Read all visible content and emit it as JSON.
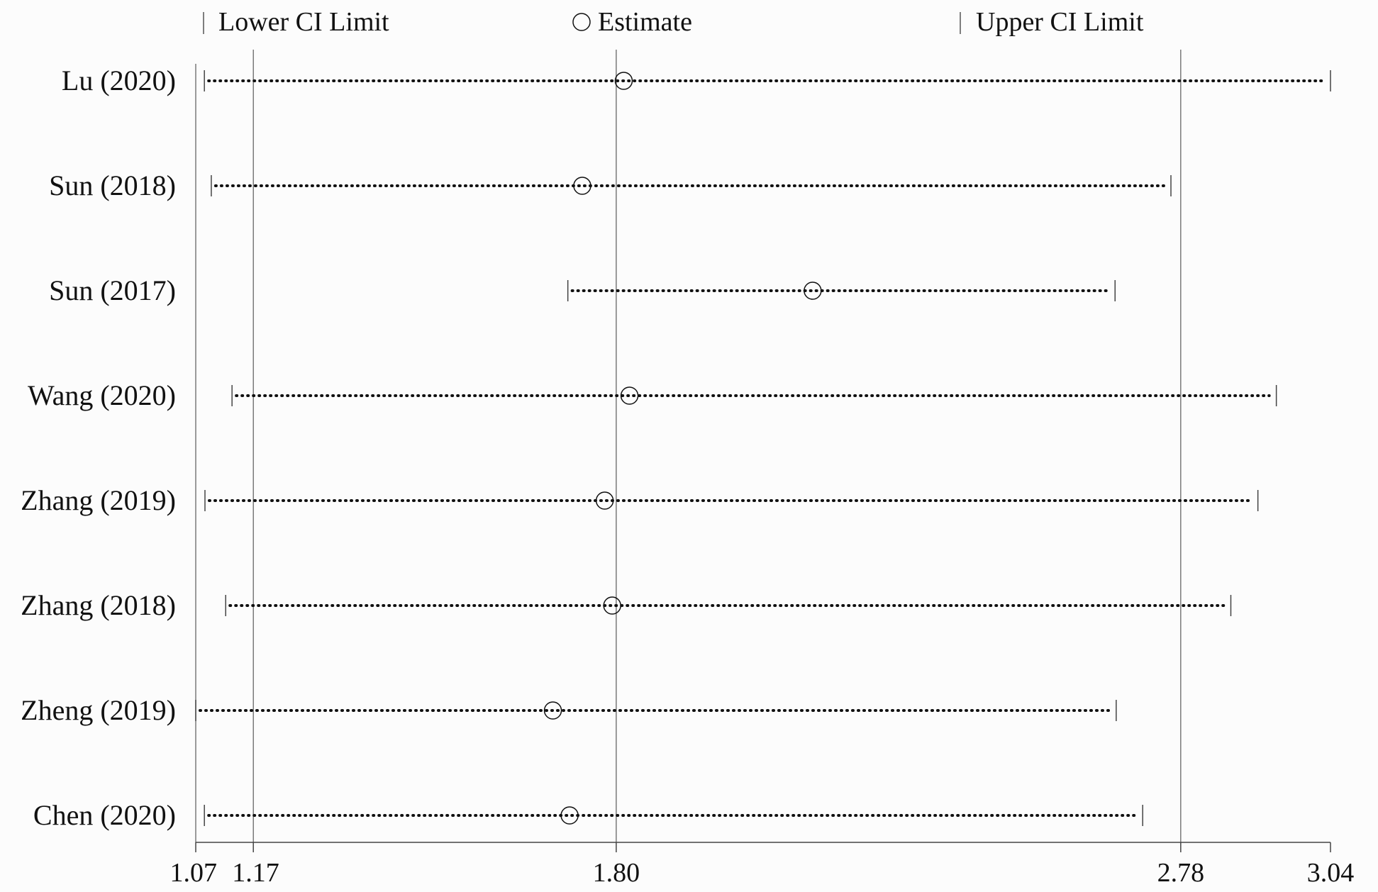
{
  "chart_data": {
    "type": "forest",
    "legend": {
      "position": "top",
      "items": [
        {
          "symbol": "tick",
          "label": "Lower CI Limit"
        },
        {
          "symbol": "circle",
          "label": "Estimate"
        },
        {
          "symbol": "tick",
          "label": "Upper CI Limit"
        }
      ]
    },
    "xlim": [
      1.07,
      3.04
    ],
    "x_ticks": [
      "1.07",
      "1.17",
      "1.80",
      "2.78",
      "3.04"
    ],
    "reference_lines": [
      1.17,
      1.8,
      2.78
    ],
    "studies": [
      {
        "label": "Lu (2020)",
        "lower": 1.085,
        "estimate": 1.813,
        "upper": 3.04
      },
      {
        "label": "Sun (2018)",
        "lower": 1.097,
        "estimate": 1.741,
        "upper": 2.763
      },
      {
        "label": "Sun (2017)",
        "lower": 1.716,
        "estimate": 2.141,
        "upper": 2.666
      },
      {
        "label": "Wang (2020)",
        "lower": 1.133,
        "estimate": 1.823,
        "upper": 2.946
      },
      {
        "label": "Zhang (2019)",
        "lower": 1.086,
        "estimate": 1.78,
        "upper": 2.914
      },
      {
        "label": "Zhang (2018)",
        "lower": 1.122,
        "estimate": 1.793,
        "upper": 2.867
      },
      {
        "label": "Zheng (2019)",
        "lower": 1.07,
        "estimate": 1.69,
        "upper": 2.668
      },
      {
        "label": "Chen (2020)",
        "lower": 1.085,
        "estimate": 1.719,
        "upper": 2.714
      }
    ]
  }
}
